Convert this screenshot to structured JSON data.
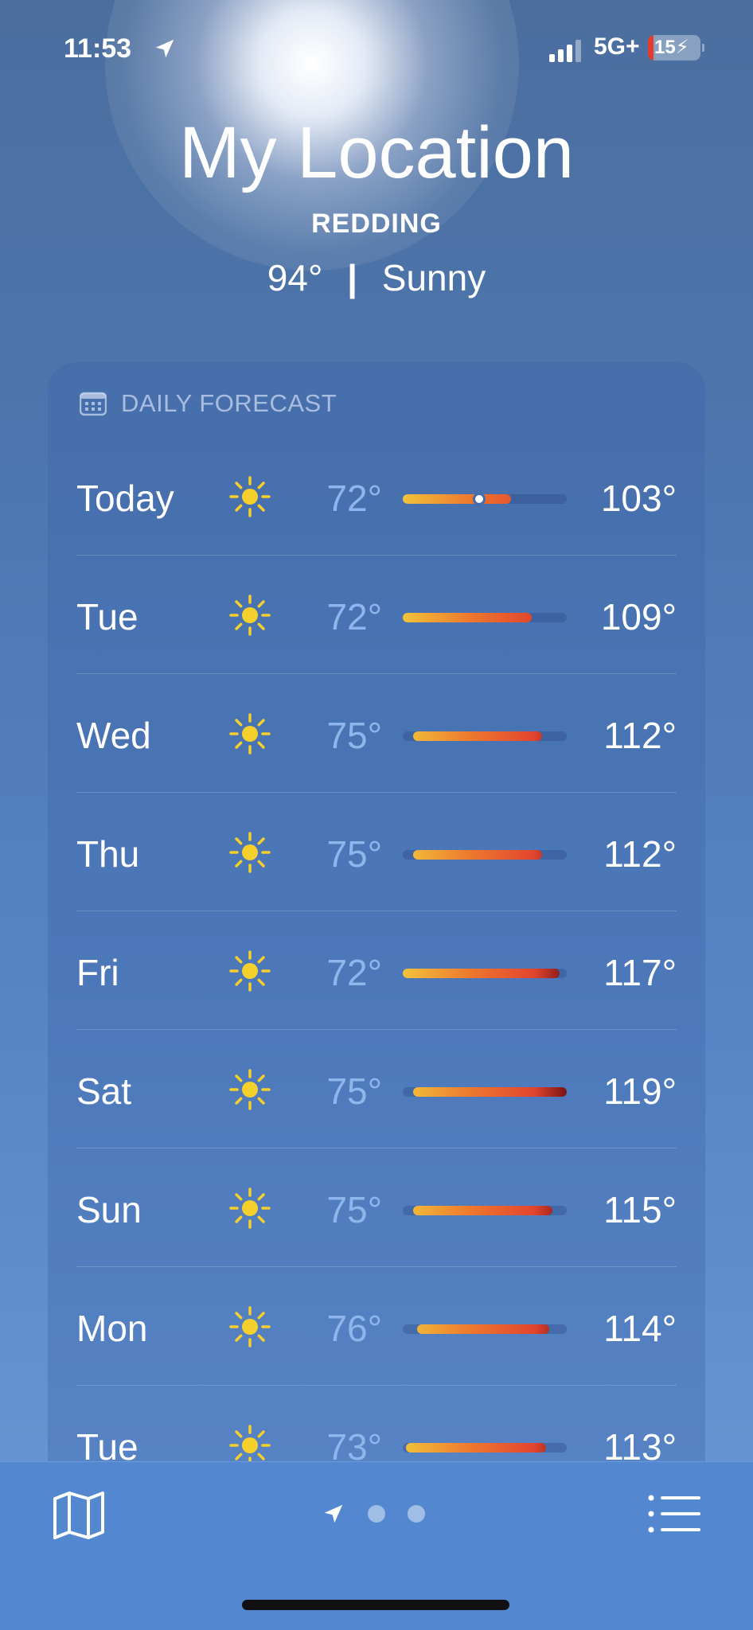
{
  "status_bar": {
    "time": "11:53",
    "network": "5G+",
    "battery": "15",
    "battery_low_color": "#e53a2e"
  },
  "header": {
    "title": "My Location",
    "city": "REDDING",
    "temperature": "94°",
    "separator": "|",
    "condition": "Sunny"
  },
  "forecast": {
    "heading": "DAILY FORECAST",
    "icon": "calendar-icon",
    "range_min": 72,
    "range_max": 119,
    "current_temp": 94,
    "days": [
      {
        "day": "Today",
        "icon": "sun-icon",
        "low": "72°",
        "high": "103°",
        "low_val": 72,
        "high_val": 103
      },
      {
        "day": "Tue",
        "icon": "sun-icon",
        "low": "72°",
        "high": "109°",
        "low_val": 72,
        "high_val": 109
      },
      {
        "day": "Wed",
        "icon": "sun-icon",
        "low": "75°",
        "high": "112°",
        "low_val": 75,
        "high_val": 112
      },
      {
        "day": "Thu",
        "icon": "sun-icon",
        "low": "75°",
        "high": "112°",
        "low_val": 75,
        "high_val": 112
      },
      {
        "day": "Fri",
        "icon": "sun-icon",
        "low": "72°",
        "high": "117°",
        "low_val": 72,
        "high_val": 117
      },
      {
        "day": "Sat",
        "icon": "sun-icon",
        "low": "75°",
        "high": "119°",
        "low_val": 75,
        "high_val": 119
      },
      {
        "day": "Sun",
        "icon": "sun-icon",
        "low": "75°",
        "high": "115°",
        "low_val": 75,
        "high_val": 115
      },
      {
        "day": "Mon",
        "icon": "sun-icon",
        "low": "76°",
        "high": "114°",
        "low_val": 76,
        "high_val": 114
      },
      {
        "day": "Tue",
        "icon": "sun-icon",
        "low": "73°",
        "high": "113°",
        "low_val": 73,
        "high_val": 113
      }
    ]
  },
  "colors": {
    "sun": "#f5cf2c",
    "low_temp": "#8fb6ec",
    "bar_gradient": [
      "#f2c33a",
      "#ee7a2e",
      "#e2452f",
      "#7a1414"
    ]
  },
  "tab_bar": {
    "left": "map-icon",
    "center": "location-arrow-icon",
    "pages": 3,
    "active_page": 1,
    "right": "list-icon"
  }
}
